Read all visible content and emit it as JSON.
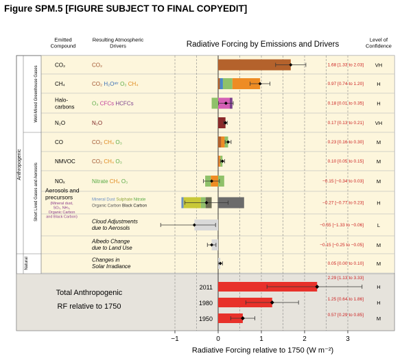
{
  "figure": {
    "title": "Figure SPM.5 [FIGURE SUBJECT TO FINAL COPYEDIT]"
  },
  "chart_data": {
    "type": "bar",
    "title": "Radiative Forcing by Emissions and Drivers",
    "xlabel": "Radiative Forcing relative to 1750 (W m⁻²)",
    "xlim": [
      -1.25,
      3.3
    ],
    "xticks": [
      "−1",
      "0",
      "1",
      "2",
      "3"
    ],
    "xtick_values": [
      -1,
      0,
      1,
      2,
      3
    ],
    "grid": "dashed vertical lines at 0.5 W m⁻² intervals",
    "headers": {
      "emitted": "Emitted\nCompound",
      "drivers": "Resulting Atmospheric\nDrivers",
      "confidence": "Level of\nConfidence"
    },
    "group_labels": {
      "anthropogenic": "Anthropogenic",
      "wmghg": "Well-Mixed Greenhouse Gases",
      "short_lived": "Short Lived Gases and Aerosols",
      "natural": "Natural"
    },
    "rows": [
      {
        "compound": "CO₂",
        "drivers": [
          {
            "t": "CO₂",
            "c": "#a0522d"
          }
        ],
        "segments": [
          {
            "from": 0,
            "to": 1.68,
            "color": "#b4622c"
          }
        ],
        "best": 1.68,
        "ci": [
          1.33,
          2.03
        ],
        "value_text": "1.68 [1.33 to 2.03]",
        "confidence": "VH"
      },
      {
        "compound": "CH₄",
        "drivers": [
          {
            "t": "CO₂",
            "c": "#a0522d"
          },
          {
            "t": "H₂Oˢᵗʳ",
            "c": "#3b6fb6"
          },
          {
            "t": "O₃",
            "c": "#5aab46"
          },
          {
            "t": "CH₄",
            "c": "#e08a1e"
          }
        ],
        "segments": [
          {
            "from": 0,
            "to": 0.04,
            "color": "#b4622c"
          },
          {
            "from": 0.04,
            "to": 0.11,
            "color": "#4a86c8"
          },
          {
            "from": 0.11,
            "to": 0.33,
            "color": "#8fc16a"
          },
          {
            "from": 0.33,
            "to": 0.97,
            "color": "#ee8c24"
          }
        ],
        "best": 0.97,
        "ci": [
          0.74,
          1.2
        ],
        "value_text": "0.97 [0.74 to 1.20]",
        "confidence": "H"
      },
      {
        "compound": "Halo-\ncarbons",
        "drivers": [
          {
            "t": "O₃",
            "c": "#5aab46"
          },
          {
            "t": "CFCs",
            "c": "#c0399a"
          },
          {
            "t": "HCFCs",
            "c": "#7b3f8c"
          }
        ],
        "segments": [
          {
            "from": -0.15,
            "to": 0,
            "color": "#8fc16a"
          },
          {
            "from": 0,
            "to": 0.27,
            "color": "#d45fb5"
          },
          {
            "from": 0.27,
            "to": 0.33,
            "color": "#7b3f8c"
          }
        ],
        "best": 0.18,
        "ci": [
          0.01,
          0.35
        ],
        "value_text": "0.18 [0.01 to 0.35]",
        "confidence": "H"
      },
      {
        "compound": "N₂O",
        "drivers": [
          {
            "t": "N₂O",
            "c": "#7a1f1f"
          }
        ],
        "segments": [
          {
            "from": 0,
            "to": 0.17,
            "color": "#8b2a2a"
          }
        ],
        "best": 0.17,
        "ci": [
          0.13,
          0.21
        ],
        "value_text": "0.17 [0.13 to 0.21]",
        "confidence": "VH"
      },
      {
        "compound": "CO",
        "drivers": [
          {
            "t": "CO₂",
            "c": "#a0522d"
          },
          {
            "t": "CH₄",
            "c": "#e08a1e"
          },
          {
            "t": "O₃",
            "c": "#5aab46"
          }
        ],
        "segments": [
          {
            "from": 0,
            "to": 0.07,
            "color": "#b4622c"
          },
          {
            "from": 0.07,
            "to": 0.15,
            "color": "#ee8c24"
          },
          {
            "from": 0.15,
            "to": 0.23,
            "color": "#8fc16a"
          }
        ],
        "best": 0.23,
        "ci": [
          0.16,
          0.3
        ],
        "value_text": "0.23 [0.16 to 0.30]",
        "confidence": "M"
      },
      {
        "compound": "NMVOC",
        "drivers": [
          {
            "t": "CO₂",
            "c": "#a0522d"
          },
          {
            "t": "CH₄",
            "c": "#e08a1e"
          },
          {
            "t": "O₃",
            "c": "#5aab46"
          }
        ],
        "segments": [
          {
            "from": 0,
            "to": 0.02,
            "color": "#b4622c"
          },
          {
            "from": 0.02,
            "to": 0.05,
            "color": "#ee8c24"
          },
          {
            "from": 0.05,
            "to": 0.1,
            "color": "#8fc16a"
          }
        ],
        "best": 0.1,
        "ci": [
          0.05,
          0.15
        ],
        "value_text": "0.10 [0.05 to 0.15]",
        "confidence": "M"
      },
      {
        "compound": "NOₓ",
        "drivers": [
          {
            "t": "Nitrate",
            "c": "#5aab46"
          },
          {
            "t": "CH₄",
            "c": "#e08a1e"
          },
          {
            "t": "O₃",
            "c": "#5aab46"
          }
        ],
        "segments": [
          {
            "from": -0.3,
            "to": -0.17,
            "color": "#8fc16a"
          },
          {
            "from": -0.17,
            "to": 0,
            "color": "#ee8c24"
          },
          {
            "from": 0,
            "to": 0.14,
            "color": "#8fc16a"
          }
        ],
        "best": -0.15,
        "ci": [
          -0.34,
          0.03
        ],
        "value_text": "−0.15 [−0.34 to 0.03]",
        "confidence": "M"
      },
      {
        "compound": "Aerosols and\nprecursors",
        "sub": "(Mineral dust,\nSO₂, NH₃,\nOrganic Carbon\nand Black Carbon)",
        "drivers": [
          {
            "t": "Mineral Dust",
            "c": "#6b8fc4"
          },
          {
            "t": "Sulphate",
            "c": "#8fa63a"
          },
          {
            "t": "Nitrate",
            "c": "#5aab46"
          },
          {
            "t": "Organic Carbon",
            "c": "#555"
          },
          {
            "t": "Black Carbon",
            "c": "#222"
          }
        ],
        "segments": [
          {
            "from": -0.85,
            "to": -0.8,
            "color": "#6b8fc4"
          },
          {
            "from": -0.8,
            "to": -0.4,
            "color": "#c8c838"
          },
          {
            "from": -0.4,
            "to": -0.29,
            "color": "#8fc16a"
          },
          {
            "from": -0.29,
            "to": -0.15,
            "color": "#6e6e56"
          },
          {
            "from": 0,
            "to": 0.6,
            "color": "#6b6b6b"
          }
        ],
        "best": -0.27,
        "ci": [
          -0.77,
          0.23
        ],
        "value_text": "−0.27 [−0.77 to 0.23]",
        "confidence": "H"
      },
      {
        "compound": "",
        "drivers_italic": "Cloud Adjustments\ndue to Aerosols",
        "segments": [
          {
            "from": -0.55,
            "to": 0,
            "color": "#d9d9d9"
          }
        ],
        "best": -0.55,
        "ci": [
          -1.33,
          -0.06
        ],
        "value_text": "−0.55 [−1.33 to −0.06]",
        "confidence": "L"
      },
      {
        "compound": "",
        "drivers_italic": "Albedo Change\ndue to Land Use",
        "segments": [
          {
            "from": -0.15,
            "to": 0,
            "color": "#d9d9d9"
          }
        ],
        "best": -0.15,
        "ci": [
          -0.25,
          -0.05
        ],
        "value_text": "−0.15 [−0.25 to −0.05]",
        "confidence": "M"
      },
      {
        "compound": "",
        "drivers_italic": "Changes in\nSolar Irradiance",
        "segments": [
          {
            "from": 0,
            "to": 0.05,
            "color": "#d9d9d9"
          }
        ],
        "best": 0.05,
        "ci": [
          0,
          0.1
        ],
        "value_text": "0.05 [0.00 to 0.10]",
        "confidence": "M"
      }
    ],
    "total": {
      "label": "Total Anthropogenic\nRF relative to 1750",
      "years": [
        {
          "year": "2011",
          "best": 2.29,
          "ci": [
            1.13,
            3.33
          ],
          "value_text": "2.29 [1.13 to 3.33]",
          "confidence": "H"
        },
        {
          "year": "1980",
          "best": 1.25,
          "ci": [
            0.64,
            1.86
          ],
          "value_text": "1.25 [0.64 to 1.86]",
          "confidence": "H"
        },
        {
          "year": "1950",
          "best": 0.57,
          "ci": [
            0.29,
            0.85
          ],
          "value_text": "0.57 [0.29 to 0.85]",
          "confidence": "M"
        }
      ],
      "bar_color": "#e8312a"
    },
    "colors": {
      "row_fill": "#fdf6dc",
      "total_bg": "#e6e3dc",
      "value_text": "#cc2020"
    }
  }
}
